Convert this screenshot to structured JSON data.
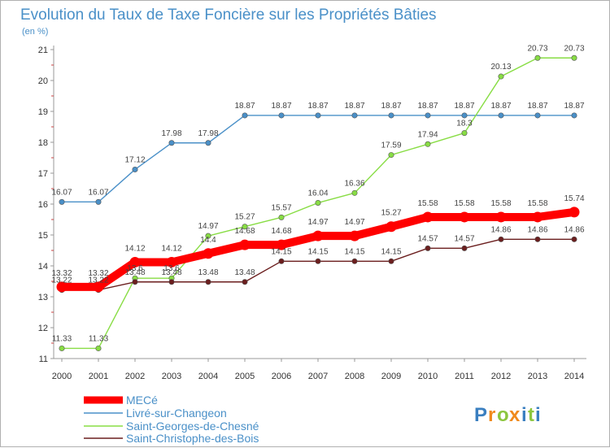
{
  "chart_data": {
    "type": "line",
    "title": "Evolution du Taux de Taxe Foncière sur les Propriétés Bâties",
    "subtitle": "(en %)",
    "xlabel": "",
    "ylabel": "",
    "x": [
      "2000",
      "2001",
      "2002",
      "2003",
      "2004",
      "2005",
      "2006",
      "2007",
      "2008",
      "2009",
      "2010",
      "2011",
      "2012",
      "2013",
      "2014"
    ],
    "ylim": [
      11,
      21
    ],
    "yticks": [
      "11",
      "12",
      "13",
      "14",
      "15",
      "16",
      "17",
      "18",
      "19",
      "20",
      "21"
    ],
    "grid": false,
    "legend": "bottom-left",
    "series": [
      {
        "name": "MECé",
        "color": "#ff0000",
        "values": [
          13.32,
          13.32,
          14.12,
          14.12,
          14.4,
          14.68,
          14.68,
          14.97,
          14.97,
          15.27,
          15.58,
          15.58,
          15.58,
          15.58,
          15.74
        ],
        "labels": [
          "13.32",
          "13.32",
          "14.12",
          "14.12",
          "14.4",
          "14.68",
          "14.68",
          "14.97",
          "14.97",
          "15.27",
          "15.58",
          "15.58",
          "15.58",
          "15.58",
          "15.74"
        ]
      },
      {
        "name": "Livré-sur-Changeon",
        "color": "#4a90c8",
        "values": [
          16.07,
          16.07,
          17.12,
          17.98,
          17.98,
          18.87,
          18.87,
          18.87,
          18.87,
          18.87,
          18.87,
          18.87,
          18.87,
          18.87,
          18.87
        ],
        "labels": [
          "16.07",
          "16.07",
          "17.12",
          "17.98",
          "17.98",
          "18.87",
          "18.87",
          "18.87",
          "18.87",
          "18.87",
          "18.87",
          "18.87",
          "18.87",
          "18.87",
          "18.87"
        ]
      },
      {
        "name": "Saint-Georges-de-Chesné",
        "color": "#88dd44",
        "values": [
          11.33,
          11.33,
          13.6,
          13.6,
          14.97,
          15.27,
          15.57,
          16.04,
          16.36,
          17.59,
          17.94,
          18.3,
          20.13,
          20.73,
          20.73
        ],
        "labels": [
          "11.33",
          "11.33",
          "13.6",
          "13.6",
          "14.97",
          "15.27",
          "15.57",
          "16.04",
          "16.36",
          "17.59",
          "17.94",
          "18.3",
          "20.13",
          "20.73",
          "20.73"
        ]
      },
      {
        "name": "Saint-Christophe-des-Bois",
        "color": "#6b1e1e",
        "values": [
          13.22,
          13.22,
          13.48,
          13.48,
          13.48,
          13.48,
          14.15,
          14.15,
          14.15,
          14.15,
          14.57,
          14.57,
          14.86,
          14.86,
          14.86
        ],
        "labels": [
          "13.22",
          "13.22",
          "13.48",
          "13.48",
          "13.48",
          "13.48",
          "14.15",
          "14.15",
          "14.15",
          "14.15",
          "14.57",
          "14.57",
          "14.86",
          "14.86",
          "14.86"
        ]
      }
    ]
  },
  "logo": {
    "letters": [
      "P",
      "r",
      "o",
      "x",
      "i",
      "t",
      "i"
    ],
    "colors": [
      "#3a7fc0",
      "#f08a1c",
      "#8cc63f",
      "#f08a1c",
      "#3a7fc0",
      "#8cc63f",
      "#3a7fc0"
    ]
  }
}
